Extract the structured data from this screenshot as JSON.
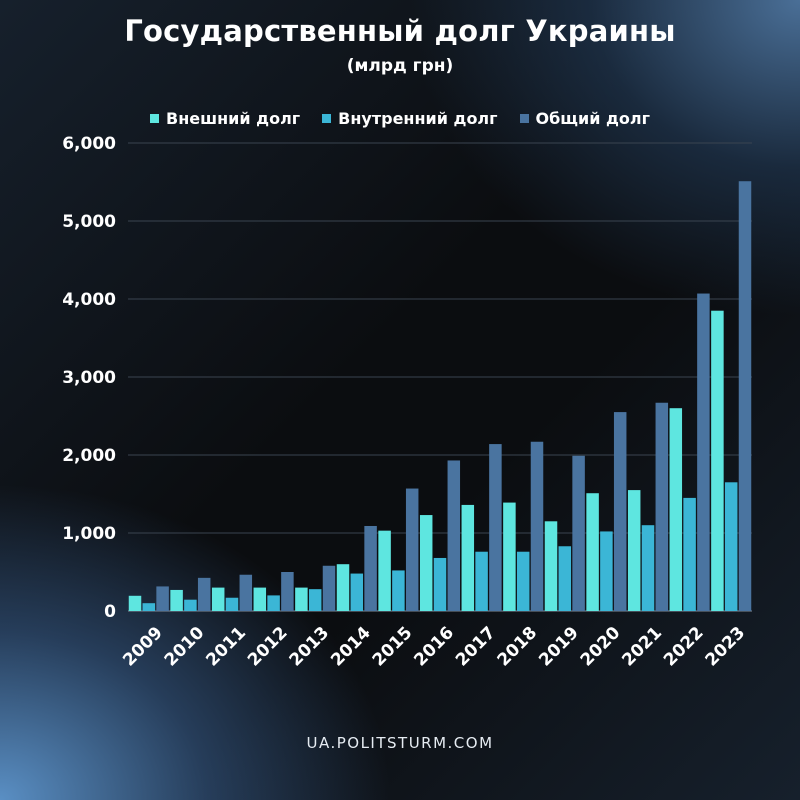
{
  "chart_data": {
    "type": "bar",
    "title": "Государственный долг Украины",
    "subtitle": "(млрд грн)",
    "categories": [
      "2009",
      "2010",
      "2011",
      "2012",
      "2013",
      "2014",
      "2015",
      "2016",
      "2017",
      "2018",
      "2019",
      "2020",
      "2021",
      "2022",
      "2023"
    ],
    "series": [
      {
        "name": "Внешний долг",
        "color": "#5ee6e0",
        "values": [
          195,
          270,
          300,
          300,
          300,
          600,
          1030,
          1230,
          1360,
          1390,
          1150,
          1510,
          1550,
          2600,
          3850
        ]
      },
      {
        "name": "Внутренний долг",
        "color": "#3bb6d6",
        "values": [
          100,
          145,
          170,
          200,
          280,
          480,
          520,
          680,
          760,
          760,
          830,
          1020,
          1100,
          1450,
          1650
        ]
      },
      {
        "name": "Общий долг",
        "color": "#4a74a0",
        "values": [
          315,
          425,
          465,
          500,
          580,
          1090,
          1570,
          1930,
          2140,
          2170,
          1990,
          2550,
          2670,
          4070,
          5510
        ]
      }
    ],
    "yticks": [
      "0",
      "1,000",
      "2,000",
      "3,000",
      "4,000",
      "5,000",
      "6,000"
    ],
    "ylim": [
      0,
      6000
    ],
    "grid": true,
    "legend_position": "top-center"
  },
  "footer": "UA.POLITSTURM.COM"
}
